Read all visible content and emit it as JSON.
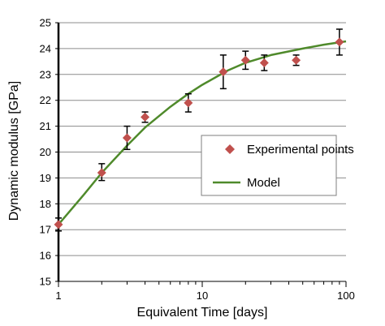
{
  "chart_data": {
    "type": "scatter",
    "xlabel": "Equivalent Time  [days]",
    "ylabel": "Dynamic modulus [GPa]",
    "x_scale": "log",
    "xlim": [
      1,
      100
    ],
    "ylim": [
      15,
      25
    ],
    "x_ticks": [
      1,
      10,
      100
    ],
    "y_ticks": [
      15,
      16,
      17,
      18,
      19,
      20,
      21,
      22,
      23,
      24,
      25
    ],
    "grid": "horizontal",
    "legend": {
      "placement": "center-right"
    },
    "series": [
      {
        "name": "Experimental points",
        "kind": "points",
        "marker": "diamond",
        "color": "#c0504d",
        "points": [
          {
            "x": 1,
            "y": 17.2,
            "err_low": 16.95,
            "err_high": 17.45
          },
          {
            "x": 2,
            "y": 19.2,
            "err_low": 18.9,
            "err_high": 19.55
          },
          {
            "x": 3,
            "y": 20.55,
            "err_low": 20.1,
            "err_high": 21.0
          },
          {
            "x": 4,
            "y": 21.35,
            "err_low": 21.15,
            "err_high": 21.55
          },
          {
            "x": 8,
            "y": 21.9,
            "err_low": 21.55,
            "err_high": 22.25
          },
          {
            "x": 14,
            "y": 23.1,
            "err_low": 22.45,
            "err_high": 23.75
          },
          {
            "x": 20,
            "y": 23.55,
            "err_low": 23.2,
            "err_high": 23.9
          },
          {
            "x": 27,
            "y": 23.45,
            "err_low": 23.15,
            "err_high": 23.75
          },
          {
            "x": 45,
            "y": 23.55,
            "err_low": 23.35,
            "err_high": 23.75
          },
          {
            "x": 90,
            "y": 24.25,
            "err_low": 23.75,
            "err_high": 24.75
          }
        ]
      },
      {
        "name": "Model",
        "kind": "line",
        "color": "#4f8a2b",
        "points": [
          {
            "x": 1,
            "y": 17.2
          },
          {
            "x": 1.5,
            "y": 18.35
          },
          {
            "x": 2,
            "y": 19.2
          },
          {
            "x": 3,
            "y": 20.25
          },
          {
            "x": 4,
            "y": 20.95
          },
          {
            "x": 6,
            "y": 21.75
          },
          {
            "x": 8,
            "y": 22.25
          },
          {
            "x": 10,
            "y": 22.6
          },
          {
            "x": 15,
            "y": 23.15
          },
          {
            "x": 20,
            "y": 23.45
          },
          {
            "x": 30,
            "y": 23.75
          },
          {
            "x": 50,
            "y": 24.0
          },
          {
            "x": 70,
            "y": 24.15
          },
          {
            "x": 100,
            "y": 24.28
          }
        ]
      }
    ]
  }
}
